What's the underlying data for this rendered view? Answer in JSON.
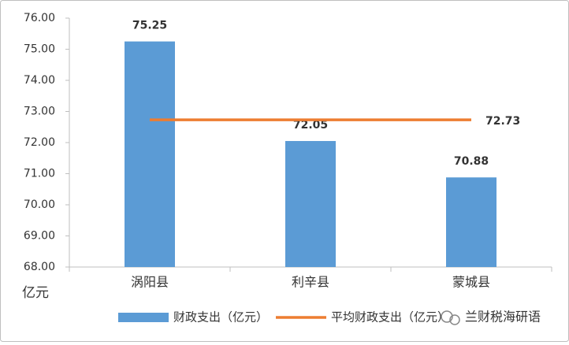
{
  "chart_data": {
    "type": "bar",
    "categories": [
      "涡阳县",
      "利辛县",
      "蒙城县"
    ],
    "series": [
      {
        "name": "财政支出（亿元）",
        "type": "bar",
        "color": "#5b9bd5",
        "values": [
          75.25,
          72.05,
          70.88
        ]
      },
      {
        "name": "平均财政支出（亿元）",
        "type": "line",
        "color": "#ed7d31",
        "values": [
          72.73,
          72.73,
          72.73
        ]
      }
    ],
    "ylim": [
      68,
      76
    ],
    "yticks": [
      {
        "value": 68,
        "label": "68.00"
      },
      {
        "value": 69,
        "label": "69.00"
      },
      {
        "value": 70,
        "label": "70.00"
      },
      {
        "value": 71,
        "label": "71.00"
      },
      {
        "value": 72,
        "label": "72.00"
      },
      {
        "value": 73,
        "label": "73.00"
      },
      {
        "value": 74,
        "label": "74.00"
      },
      {
        "value": 75,
        "label": "75.00"
      },
      {
        "value": 76,
        "label": "76.00"
      }
    ],
    "y_unit": "亿元",
    "legend": "bottom",
    "watermark": "兰财税海研语"
  }
}
